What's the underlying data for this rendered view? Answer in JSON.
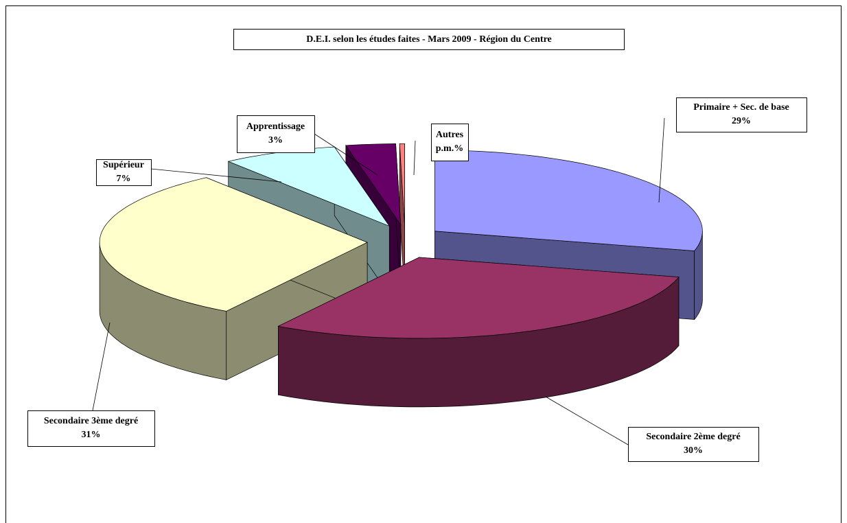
{
  "chart_data": {
    "type": "pie3d",
    "title": "D.E.I. selon les études faites - Mars 2009 - Région du Centre",
    "categories": [
      "Primaire + Sec. de base",
      "Secondaire 2ème degré",
      "Secondaire 3ème degré",
      "Supérieur",
      "Apprentissage",
      "Autres"
    ],
    "values": [
      29,
      30,
      31,
      7,
      3,
      0.3
    ],
    "value_labels": [
      "29%",
      "30%",
      "31%",
      "7%",
      "3%",
      "p.m.%"
    ],
    "colors": [
      "#9999ff",
      "#993366",
      "#ffffcc",
      "#ccffff",
      "#660066",
      "#ff8080"
    ]
  }
}
